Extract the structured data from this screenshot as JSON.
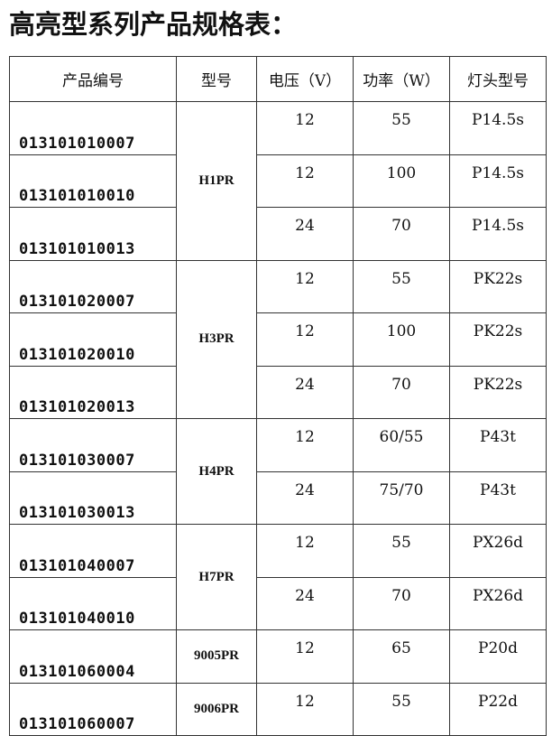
{
  "title": "高亮型系列产品规格表：",
  "headers": [
    "产品编号",
    "型号",
    "电压（V）",
    "功率（W）",
    "灯头型号"
  ],
  "groups": [
    {
      "model": "H1PR",
      "rows": [
        {
          "code": "013101010007",
          "voltage": "12",
          "power": "55",
          "base": "P14.5s"
        },
        {
          "code": "013101010010",
          "voltage": "12",
          "power": "100",
          "base": "P14.5s"
        },
        {
          "code": "013101010013",
          "voltage": "24",
          "power": "70",
          "base": "P14.5s"
        }
      ]
    },
    {
      "model": "H3PR",
      "rows": [
        {
          "code": "013101020007",
          "voltage": "12",
          "power": "55",
          "base": "PK22s"
        },
        {
          "code": "013101020010",
          "voltage": "12",
          "power": "100",
          "base": "PK22s"
        },
        {
          "code": "013101020013",
          "voltage": "24",
          "power": "70",
          "base": "PK22s"
        }
      ]
    },
    {
      "model": "H4PR",
      "rows": [
        {
          "code": "013101030007",
          "voltage": "12",
          "power": "60/55",
          "base": "P43t"
        },
        {
          "code": "013101030013",
          "voltage": "24",
          "power": "75/70",
          "base": "P43t"
        }
      ]
    },
    {
      "model": "H7PR",
      "rows": [
        {
          "code": "013101040007",
          "voltage": "12",
          "power": "55",
          "base": "PX26d"
        },
        {
          "code": "013101040010",
          "voltage": "24",
          "power": "70",
          "base": "PX26d"
        }
      ]
    },
    {
      "model": "9005PR",
      "rows": [
        {
          "code": "013101060004",
          "voltage": "12",
          "power": "65",
          "base": "P20d"
        }
      ]
    },
    {
      "model": "9006PR",
      "rows": [
        {
          "code": "013101060007",
          "voltage": "12",
          "power": "55",
          "base": "P22d"
        }
      ]
    }
  ]
}
